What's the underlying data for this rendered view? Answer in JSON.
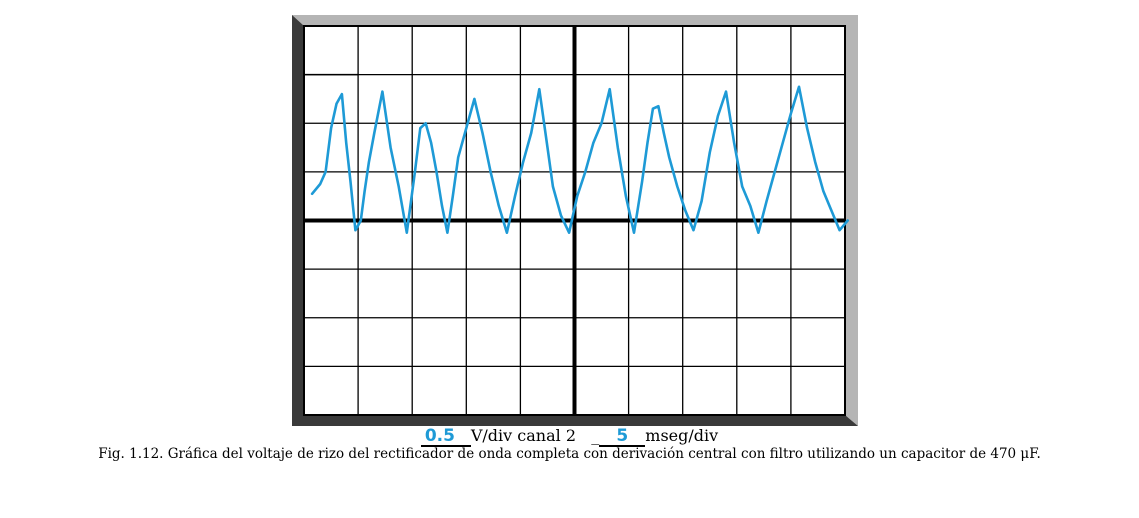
{
  "colors": {
    "frame_dark": "#3a3a3a",
    "frame_light": "#b5b5b5",
    "screen": "#ffffff",
    "grid": "#000000",
    "trace": "#1e9ad6",
    "handwriting": "#1e9ad6"
  },
  "settings": {
    "volts_value": "0.5",
    "volts_unit": "V/div canal 2",
    "time_value": "5",
    "time_unit": "mseg/div",
    "time_prefix": "_"
  },
  "caption": "Fig. 1.12. Gráfica del voltaje de rizo del rectificador de onda completa con derivación central con filtro utilizando un capacitor de 470 μF.",
  "chart_data": {
    "type": "line",
    "title": "",
    "xlabel": "",
    "ylabel": "",
    "grid": true,
    "x_divisions": 10,
    "y_divisions": 8,
    "xlim": [
      0,
      10
    ],
    "ylim": [
      -4,
      4
    ],
    "x_unit_note": "divisions (5 ms/div)",
    "y_unit_note": "divisions (0.5 V/div, channel 2)",
    "ground_marker_y": 3,
    "series": [
      {
        "x": [
          0.15,
          0.3,
          0.4,
          0.5,
          0.6,
          0.7,
          0.78,
          0.86,
          0.95,
          1.05,
          1.12,
          1.2,
          1.3,
          1.45,
          1.6,
          1.75,
          1.9,
          2.05,
          2.15,
          2.25,
          2.35,
          2.45,
          2.55,
          2.65,
          2.75,
          2.85,
          3.0,
          3.15,
          3.3,
          3.45,
          3.6,
          3.75,
          3.9,
          4.05,
          4.2,
          4.35,
          4.5,
          4.6,
          4.75,
          4.9,
          5.05,
          5.2,
          5.35,
          5.5,
          5.65,
          5.8,
          5.95,
          6.1,
          6.25,
          6.35,
          6.45,
          6.55,
          6.65,
          6.75,
          6.9,
          7.05,
          7.2,
          7.35,
          7.5,
          7.65,
          7.8,
          7.95,
          8.1,
          8.25,
          8.4,
          8.55,
          8.7,
          8.85,
          9.0,
          9.15,
          9.3,
          9.45,
          9.6,
          9.75,
          9.9,
          10.05
        ],
        "y": [
          0.55,
          0.75,
          1.0,
          1.9,
          2.4,
          2.6,
          1.6,
          0.8,
          -0.2,
          0.0,
          0.6,
          1.2,
          1.8,
          2.65,
          1.5,
          0.7,
          -0.25,
          1.0,
          1.9,
          2.0,
          1.6,
          1.0,
          0.3,
          -0.25,
          0.5,
          1.3,
          1.9,
          2.5,
          1.8,
          1.0,
          0.3,
          -0.25,
          0.5,
          1.2,
          1.8,
          2.7,
          1.5,
          0.7,
          0.1,
          -0.25,
          0.5,
          1.0,
          1.6,
          2.0,
          2.7,
          1.5,
          0.5,
          -0.25,
          0.8,
          1.6,
          2.3,
          2.35,
          1.8,
          1.3,
          0.7,
          0.2,
          -0.2,
          0.4,
          1.4,
          2.15,
          2.65,
          1.6,
          0.7,
          0.3,
          -0.25,
          0.4,
          1.0,
          1.6,
          2.2,
          2.75,
          1.9,
          1.2,
          0.6,
          0.2,
          -0.2,
          0.0
        ]
      }
    ]
  }
}
